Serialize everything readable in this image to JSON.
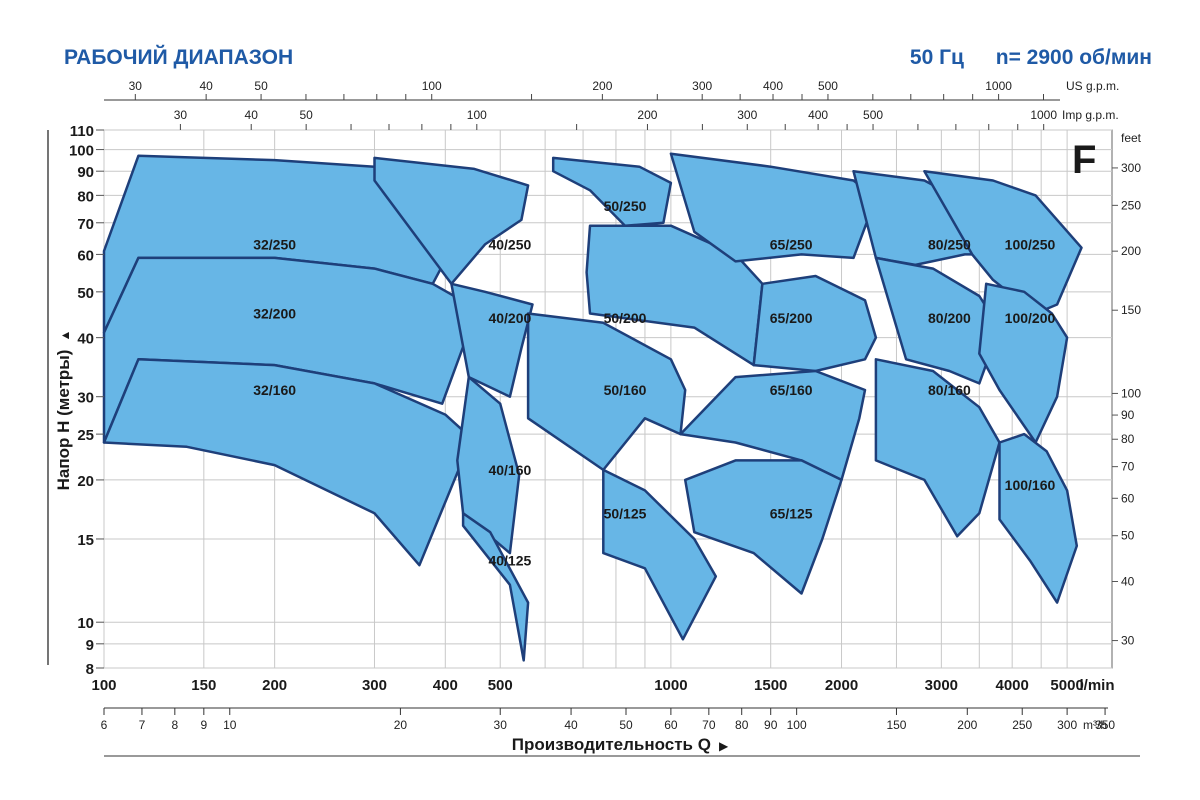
{
  "header": {
    "title": "РАБОЧИЙ ДИАПАЗОН",
    "frequency": "50 Гц",
    "speed": "n= 2900 об/мин"
  },
  "series_letter": "F",
  "chart_data": {
    "type": "area",
    "title": "РАБОЧИЙ ДИАПАЗОН",
    "ylabel": "Напор H (метры)",
    "xlabel": "Производительность Q",
    "x_scale": "log",
    "y_scale": "log",
    "xlim": [
      100,
      6000
    ],
    "ylim": [
      8,
      110
    ],
    "x_unit": "l/min",
    "x_ticks": [
      {
        "value": 100,
        "label": "100"
      },
      {
        "value": 150,
        "label": "150"
      },
      {
        "value": 200,
        "label": "200"
      },
      {
        "value": 300,
        "label": "300"
      },
      {
        "value": 400,
        "label": "400"
      },
      {
        "value": 500,
        "label": "500"
      },
      {
        "value": 1000,
        "label": "1000"
      },
      {
        "value": 1500,
        "label": "1500"
      },
      {
        "value": 2000,
        "label": "2000"
      },
      {
        "value": 3000,
        "label": "3000"
      },
      {
        "value": 4000,
        "label": "4000"
      },
      {
        "value": 5000,
        "label": "5000"
      }
    ],
    "x_minor_ticks": [
      600,
      700,
      800,
      900,
      2500,
      3500,
      4500
    ],
    "y_ticks": [
      {
        "value": 8,
        "label": "8"
      },
      {
        "value": 9,
        "label": "9"
      },
      {
        "value": 10,
        "label": "10"
      },
      {
        "value": 15,
        "label": "15"
      },
      {
        "value": 20,
        "label": "20"
      },
      {
        "value": 25,
        "label": "25"
      },
      {
        "value": 30,
        "label": "30"
      },
      {
        "value": 40,
        "label": "40"
      },
      {
        "value": 50,
        "label": "50"
      },
      {
        "value": 60,
        "label": "60"
      },
      {
        "value": 70,
        "label": "70"
      },
      {
        "value": 80,
        "label": "80"
      },
      {
        "value": 90,
        "label": "90"
      },
      {
        "value": 100,
        "label": "100"
      },
      {
        "value": 110,
        "label": "110"
      }
    ],
    "m3h_axis": {
      "unit": "m³/h",
      "ticks": [
        "6",
        "7",
        "8",
        "9",
        "10",
        "20",
        "30",
        "40",
        "50",
        "60",
        "70",
        "80",
        "90",
        "100",
        "150",
        "200",
        "250",
        "300",
        "350"
      ]
    },
    "us_gpm_axis": {
      "unit": "US g.p.m.",
      "ticks": [
        "30",
        "40",
        "50",
        "100",
        "200",
        "300",
        "400",
        "500",
        "1000"
      ]
    },
    "imp_gpm_axis": {
      "unit": "Imp g.p.m.",
      "ticks": [
        "30",
        "40",
        "50",
        "100",
        "200",
        "300",
        "400",
        "500",
        "1000"
      ]
    },
    "feet_axis": {
      "unit": "feet",
      "ticks": [
        "30",
        "40",
        "50",
        "60",
        "70",
        "80",
        "90",
        "100",
        "150",
        "200",
        "250",
        "300"
      ]
    },
    "series": [
      {
        "name": "32/250",
        "label_at": [
          200,
          63
        ],
        "points": [
          [
            100,
            61
          ],
          [
            115,
            97
          ],
          [
            200,
            95
          ],
          [
            300,
            92
          ],
          [
            400,
            86
          ],
          [
            460,
            80
          ],
          [
            380,
            52
          ],
          [
            300,
            56
          ],
          [
            200,
            59
          ],
          [
            115,
            59
          ],
          [
            100,
            41
          ]
        ]
      },
      {
        "name": "32/200",
        "label_at": [
          200,
          45
        ],
        "points": [
          [
            100,
            41
          ],
          [
            115,
            59
          ],
          [
            200,
            59
          ],
          [
            300,
            56
          ],
          [
            380,
            52
          ],
          [
            455,
            46
          ],
          [
            395,
            29
          ],
          [
            300,
            32
          ],
          [
            200,
            35
          ],
          [
            115,
            36
          ],
          [
            100,
            24
          ]
        ]
      },
      {
        "name": "32/160",
        "label_at": [
          200,
          31
        ],
        "points": [
          [
            100,
            24
          ],
          [
            115,
            36
          ],
          [
            200,
            35
          ],
          [
            300,
            32
          ],
          [
            400,
            27.5
          ],
          [
            445,
            24.5
          ],
          [
            360,
            13.2
          ],
          [
            300,
            17
          ],
          [
            200,
            21.5
          ],
          [
            140,
            23.5
          ],
          [
            100,
            24
          ]
        ]
      },
      {
        "name": "40/250",
        "label_at": [
          520,
          63
        ],
        "points": [
          [
            300,
            96
          ],
          [
            450,
            91
          ],
          [
            560,
            84
          ],
          [
            545,
            71
          ],
          [
            470,
            63
          ],
          [
            410,
            52
          ],
          [
            300,
            86
          ]
        ]
      },
      {
        "name": "40/200",
        "label_at": [
          520,
          44
        ],
        "points": [
          [
            410,
            52
          ],
          [
            470,
            50
          ],
          [
            570,
            47
          ],
          [
            545,
            38
          ],
          [
            520,
            30
          ],
          [
            440,
            33
          ]
        ]
      },
      {
        "name": "40/160",
        "label_at": [
          520,
          21
        ],
        "points": [
          [
            440,
            33
          ],
          [
            500,
            29
          ],
          [
            540,
            20.5
          ],
          [
            520,
            14
          ],
          [
            430,
            17
          ],
          [
            420,
            22
          ]
        ]
      },
      {
        "name": "40/125",
        "label_at": [
          520,
          13.5
        ],
        "points": [
          [
            430,
            17
          ],
          [
            480,
            15.5
          ],
          [
            560,
            11
          ],
          [
            550,
            8.3
          ],
          [
            520,
            12
          ],
          [
            430,
            16
          ]
        ]
      },
      {
        "name": "50/250",
        "label_at": [
          830,
          76
        ],
        "points": [
          [
            620,
            96
          ],
          [
            880,
            92
          ],
          [
            1000,
            85
          ],
          [
            970,
            70
          ],
          [
            830,
            69
          ],
          [
            720,
            82
          ],
          [
            620,
            90
          ]
        ]
      },
      {
        "name": "50/200",
        "label_at": [
          830,
          44
        ],
        "points": [
          [
            720,
            69
          ],
          [
            1000,
            69
          ],
          [
            1300,
            60
          ],
          [
            1450,
            52
          ],
          [
            1400,
            35
          ],
          [
            1100,
            42
          ],
          [
            720,
            45
          ],
          [
            710,
            55
          ]
        ]
      },
      {
        "name": "50/160",
        "label_at": [
          830,
          31
        ],
        "points": [
          [
            560,
            45
          ],
          [
            760,
            43
          ],
          [
            1000,
            36
          ],
          [
            1060,
            31
          ],
          [
            1040,
            25
          ],
          [
            900,
            27
          ],
          [
            760,
            21
          ],
          [
            560,
            27
          ]
        ]
      },
      {
        "name": "50/125",
        "label_at": [
          830,
          17
        ],
        "points": [
          [
            760,
            21
          ],
          [
            900,
            19
          ],
          [
            1100,
            15
          ],
          [
            1200,
            12.5
          ],
          [
            1050,
            9.2
          ],
          [
            900,
            13
          ],
          [
            760,
            14
          ]
        ]
      },
      {
        "name": "65/250",
        "label_at": [
          1630,
          63
        ],
        "points": [
          [
            1000,
            98
          ],
          [
            1500,
            92
          ],
          [
            2100,
            86
          ],
          [
            2300,
            79
          ],
          [
            2100,
            59
          ],
          [
            1700,
            60
          ],
          [
            1300,
            58
          ],
          [
            1100,
            67
          ]
        ]
      },
      {
        "name": "65/200",
        "label_at": [
          1630,
          44
        ],
        "points": [
          [
            1450,
            52
          ],
          [
            1800,
            54
          ],
          [
            2200,
            48
          ],
          [
            2300,
            40
          ],
          [
            2200,
            36
          ],
          [
            1800,
            34
          ],
          [
            1400,
            35
          ]
        ]
      },
      {
        "name": "65/160",
        "label_at": [
          1630,
          31
        ],
        "points": [
          [
            1040,
            25
          ],
          [
            1300,
            33
          ],
          [
            1800,
            34
          ],
          [
            2200,
            31
          ],
          [
            2150,
            27
          ],
          [
            2000,
            20
          ],
          [
            1700,
            22
          ],
          [
            1300,
            24
          ]
        ]
      },
      {
        "name": "65/125",
        "label_at": [
          1630,
          17
        ],
        "points": [
          [
            1060,
            20
          ],
          [
            1300,
            22
          ],
          [
            1700,
            22
          ],
          [
            2000,
            20
          ],
          [
            1850,
            15
          ],
          [
            1700,
            11.5
          ],
          [
            1400,
            14
          ],
          [
            1100,
            15.5
          ]
        ]
      },
      {
        "name": "80/250",
        "label_at": [
          3100,
          63
        ],
        "points": [
          [
            2100,
            90
          ],
          [
            2800,
            86
          ],
          [
            3400,
            76
          ],
          [
            3700,
            60
          ],
          [
            3300,
            60
          ],
          [
            2700,
            57
          ],
          [
            2300,
            59
          ]
        ]
      },
      {
        "name": "80/200",
        "label_at": [
          3100,
          44
        ],
        "points": [
          [
            2300,
            59
          ],
          [
            2900,
            56
          ],
          [
            3500,
            49
          ],
          [
            3800,
            42
          ],
          [
            3500,
            32
          ],
          [
            3100,
            34
          ],
          [
            2600,
            36
          ]
        ]
      },
      {
        "name": "80/160",
        "label_at": [
          3100,
          31
        ],
        "points": [
          [
            2300,
            36
          ],
          [
            2900,
            34
          ],
          [
            3500,
            28.5
          ],
          [
            3800,
            24
          ],
          [
            3500,
            17
          ],
          [
            3200,
            15.2
          ],
          [
            2800,
            20
          ],
          [
            2300,
            22
          ]
        ]
      },
      {
        "name": "100/250",
        "label_at": [
          4300,
          63
        ],
        "points": [
          [
            2800,
            90
          ],
          [
            3700,
            86
          ],
          [
            4400,
            80
          ],
          [
            5300,
            62
          ],
          [
            4800,
            47
          ],
          [
            4400,
            45
          ],
          [
            3700,
            53
          ],
          [
            3400,
            60
          ]
        ]
      },
      {
        "name": "100/200",
        "label_at": [
          4300,
          44
        ],
        "points": [
          [
            3600,
            52
          ],
          [
            4200,
            50
          ],
          [
            4700,
            45
          ],
          [
            5000,
            40
          ],
          [
            4800,
            30
          ],
          [
            4400,
            24
          ],
          [
            3800,
            31
          ],
          [
            3500,
            37
          ]
        ]
      },
      {
        "name": "100/160",
        "label_at": [
          4300,
          19.5
        ],
        "points": [
          [
            3800,
            24
          ],
          [
            4200,
            25
          ],
          [
            4600,
            23
          ],
          [
            5000,
            19
          ],
          [
            5200,
            14.5
          ],
          [
            4800,
            11
          ],
          [
            4300,
            13.5
          ],
          [
            3800,
            16.5
          ]
        ]
      }
    ]
  }
}
